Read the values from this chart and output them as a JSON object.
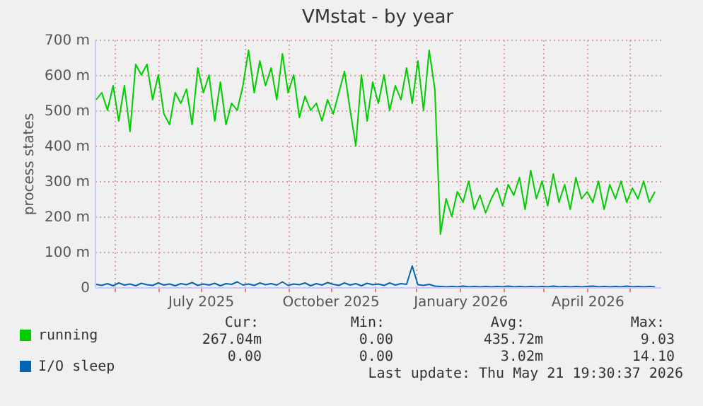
{
  "chart_data": {
    "type": "line",
    "title": "VMstat - by year",
    "ylabel": "process states",
    "x": [
      "2025-04-18",
      "2025-04-22",
      "2025-04-26",
      "2025-04-30",
      "2025-05-04",
      "2025-05-08",
      "2025-05-12",
      "2025-05-16",
      "2025-05-20",
      "2025-05-24",
      "2025-05-28",
      "2025-06-01",
      "2025-06-05",
      "2025-06-09",
      "2025-06-13",
      "2025-06-17",
      "2025-06-21",
      "2025-06-25",
      "2025-06-29",
      "2025-07-03",
      "2025-07-07",
      "2025-07-11",
      "2025-07-15",
      "2025-07-19",
      "2025-07-23",
      "2025-07-27",
      "2025-07-31",
      "2025-08-04",
      "2025-08-08",
      "2025-08-12",
      "2025-08-16",
      "2025-08-20",
      "2025-08-24",
      "2025-08-28",
      "2025-09-01",
      "2025-09-05",
      "2025-09-09",
      "2025-09-13",
      "2025-09-17",
      "2025-09-21",
      "2025-09-25",
      "2025-09-29",
      "2025-10-03",
      "2025-10-07",
      "2025-10-11",
      "2025-10-15",
      "2025-10-19",
      "2025-10-23",
      "2025-10-27",
      "2025-10-31",
      "2025-11-04",
      "2025-11-08",
      "2025-11-12",
      "2025-11-16",
      "2025-11-20",
      "2025-11-24",
      "2025-11-28",
      "2025-12-02",
      "2025-12-06",
      "2025-12-10",
      "2025-12-14",
      "2025-12-18",
      "2025-12-22",
      "2025-12-26",
      "2025-12-30",
      "2026-01-03",
      "2026-01-07",
      "2026-01-11",
      "2026-01-15",
      "2026-01-19",
      "2026-01-23",
      "2026-01-27",
      "2026-01-31",
      "2026-02-04",
      "2026-02-08",
      "2026-02-12",
      "2026-02-16",
      "2026-02-20",
      "2026-02-24",
      "2026-02-28",
      "2026-03-04",
      "2026-03-08",
      "2026-03-12",
      "2026-03-16",
      "2026-03-20",
      "2026-03-24",
      "2026-03-28",
      "2026-04-01",
      "2026-04-05",
      "2026-04-09",
      "2026-04-13",
      "2026-04-17",
      "2026-04-21",
      "2026-04-25",
      "2026-04-29",
      "2026-05-03",
      "2026-05-07",
      "2026-05-11",
      "2026-05-15",
      "2026-05-19"
    ],
    "series": [
      {
        "name": "running",
        "color": "#00cc00",
        "values": [
          530,
          550,
          500,
          570,
          470,
          570,
          440,
          630,
          600,
          630,
          530,
          600,
          490,
          460,
          550,
          520,
          560,
          460,
          620,
          550,
          600,
          470,
          580,
          460,
          520,
          500,
          570,
          670,
          550,
          640,
          570,
          620,
          530,
          660,
          550,
          600,
          480,
          540,
          500,
          520,
          470,
          530,
          490,
          550,
          610,
          500,
          400,
          600,
          470,
          580,
          520,
          600,
          500,
          570,
          530,
          620,
          520,
          640,
          500,
          670,
          560,
          150,
          250,
          200,
          270,
          240,
          300,
          220,
          260,
          210,
          250,
          280,
          230,
          290,
          260,
          310,
          220,
          330,
          250,
          300,
          230,
          320,
          240,
          290,
          220,
          310,
          250,
          270,
          240,
          300,
          220,
          290,
          250,
          300,
          240,
          280,
          250,
          300,
          240,
          270
        ]
      },
      {
        "name": "I/O sleep",
        "color": "#0066b3",
        "values": [
          8,
          5,
          10,
          4,
          12,
          6,
          9,
          4,
          11,
          7,
          5,
          12,
          6,
          9,
          4,
          10,
          7,
          13,
          5,
          9,
          6,
          11,
          4,
          10,
          8,
          15,
          6,
          9,
          5,
          12,
          7,
          10,
          6,
          15,
          5,
          9,
          7,
          12,
          4,
          10,
          6,
          13,
          8,
          5,
          12,
          6,
          10,
          4,
          11,
          7,
          9,
          5,
          12,
          6,
          10,
          8,
          60,
          7,
          5,
          8,
          3,
          2,
          1,
          2,
          1,
          3,
          1,
          2,
          1,
          2,
          1,
          2,
          1,
          3,
          1,
          2,
          1,
          2,
          1,
          2,
          1,
          3,
          1,
          2,
          1,
          2,
          1,
          2,
          3,
          1,
          2,
          1,
          2,
          1,
          3,
          1,
          2,
          1,
          2,
          1
        ]
      }
    ],
    "xlim": [
      "2025-04-17",
      "2026-05-23"
    ],
    "xticks": [
      {
        "value": "2025-05-01",
        "label": null
      },
      {
        "value": "2025-06-01",
        "label": null
      },
      {
        "value": "2025-07-01",
        "label": "July 2025"
      },
      {
        "value": "2025-08-01",
        "label": null
      },
      {
        "value": "2025-09-01",
        "label": null
      },
      {
        "value": "2025-10-01",
        "label": "October 2025"
      },
      {
        "value": "2025-11-01",
        "label": null
      },
      {
        "value": "2025-12-01",
        "label": null
      },
      {
        "value": "2026-01-01",
        "label": "January 2026"
      },
      {
        "value": "2026-02-01",
        "label": null
      },
      {
        "value": "2026-03-01",
        "label": null
      },
      {
        "value": "2026-04-01",
        "label": "April 2026"
      },
      {
        "value": "2026-05-01",
        "label": null
      }
    ],
    "ylim": [
      0,
      700
    ],
    "yticks": [
      0,
      {
        "value": 100,
        "label": "100 m"
      },
      {
        "value": 200,
        "label": "200 m"
      },
      {
        "value": 300,
        "label": "300 m"
      },
      {
        "value": 400,
        "label": "400 m"
      },
      {
        "value": 500,
        "label": "500 m"
      },
      {
        "value": 600,
        "label": "600 m"
      },
      {
        "value": 700,
        "label": "700 m"
      }
    ],
    "grid": true,
    "legend": "bottom",
    "annotations": [
      "Cur:",
      "Min:",
      "Avg:",
      "Max:",
      "267.04m",
      "0.00",
      "435.72m",
      "9.03",
      "0.00",
      "0.00",
      "3.02m",
      "14.10",
      "Last update: Thu May 21 19:30:37 2026"
    ]
  }
}
